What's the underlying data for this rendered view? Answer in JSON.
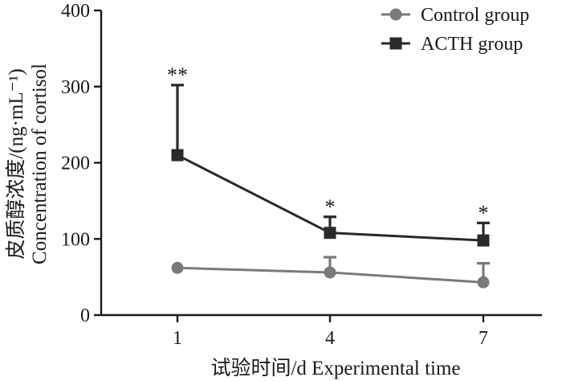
{
  "chart_data": {
    "type": "line",
    "x": [
      1,
      4,
      7
    ],
    "x_tick_labels": [
      "1",
      "4",
      "7"
    ],
    "xlabel": "试验时间/d  Experimental time",
    "ylabel_cn": "皮质醇浓度/(ng·mL⁻¹)",
    "ylabel_en": "Concentration of cortisol",
    "ylim": [
      0,
      400
    ],
    "y_ticks": [
      0,
      100,
      200,
      300,
      400
    ],
    "y_tick_labels": [
      "0",
      "100",
      "200",
      "300",
      "400"
    ],
    "legend_position": "top-right",
    "grid": false,
    "series": [
      {
        "name": "Control group",
        "marker": "circle",
        "color": "#7a7a7a",
        "values": [
          62,
          56,
          43
        ],
        "error": [
          0,
          20,
          25
        ]
      },
      {
        "name": "ACTH group",
        "marker": "square",
        "color": "#2a2a2a",
        "values": [
          210,
          108,
          98
        ],
        "error": [
          92,
          21,
          23
        ]
      }
    ],
    "significance": [
      {
        "x": 1,
        "label": "**"
      },
      {
        "x": 4,
        "label": "*"
      },
      {
        "x": 7,
        "label": "*"
      }
    ]
  }
}
